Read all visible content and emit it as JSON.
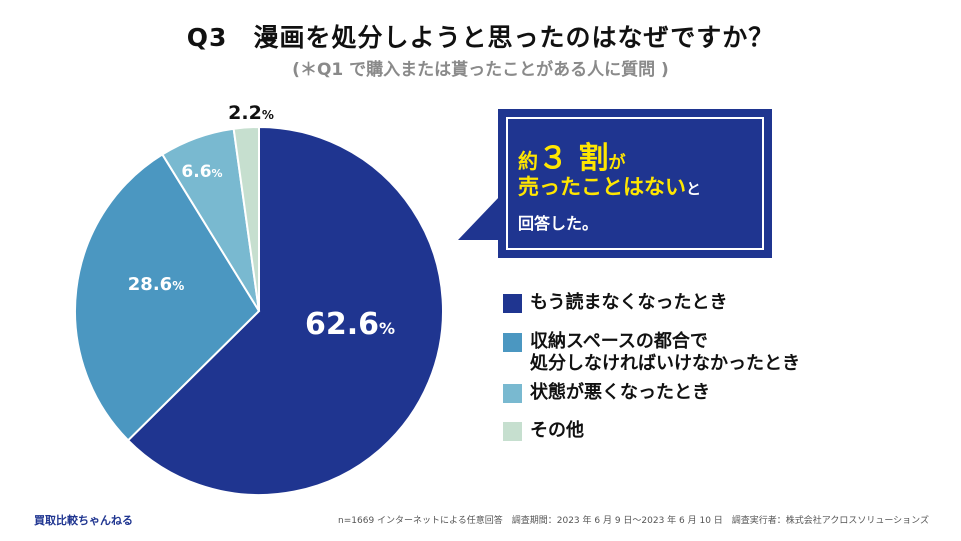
{
  "header": {
    "title": "Q3　漫画を処分しようと思ったのはなぜですか？",
    "subtitle": "(＊Q1 で購入または貰ったことがある人に質問 )"
  },
  "chart_data": {
    "type": "pie",
    "title": "Q3　漫画を処分しようと思ったのはなぜですか？",
    "unit": "%",
    "slices": [
      {
        "label": "もう読まなくなったとき",
        "label_lines": [
          "もう読まなくなったとき"
        ],
        "value": 62.6,
        "value_text": "62.6",
        "color": "#1f3590"
      },
      {
        "label": "収納スペースの都合で処分しなければいけなかったとき",
        "label_lines": [
          "収納スペースの都合で",
          "処分しなければいけなかったとき"
        ],
        "value": 28.6,
        "value_text": "28.6",
        "color": "#4b97c1"
      },
      {
        "label": "状態が悪くなったとき",
        "label_lines": [
          "状態が悪くなったとき"
        ],
        "value": 6.6,
        "value_text": "6.6",
        "color": "#79b9d0"
      },
      {
        "label": "その他",
        "label_lines": [
          "その他"
        ],
        "value": 2.2,
        "value_text": "2.2",
        "color": "#c6dfcf"
      }
    ]
  },
  "callout": {
    "line1_a": "約",
    "line1_b": "３ 割",
    "line1_c": "が",
    "line2_a": "売ったことはない",
    "line2_b": "と",
    "line3": "回答した。"
  },
  "footer": {
    "brand": "買取比較ちゃんねる",
    "note": "n=1669 インターネットによる任意回答　調査期間：2023 年 6 月 9 日〜2023 年 6 月 10 日　調査実行者：株式会社アクロスソリューションズ"
  }
}
